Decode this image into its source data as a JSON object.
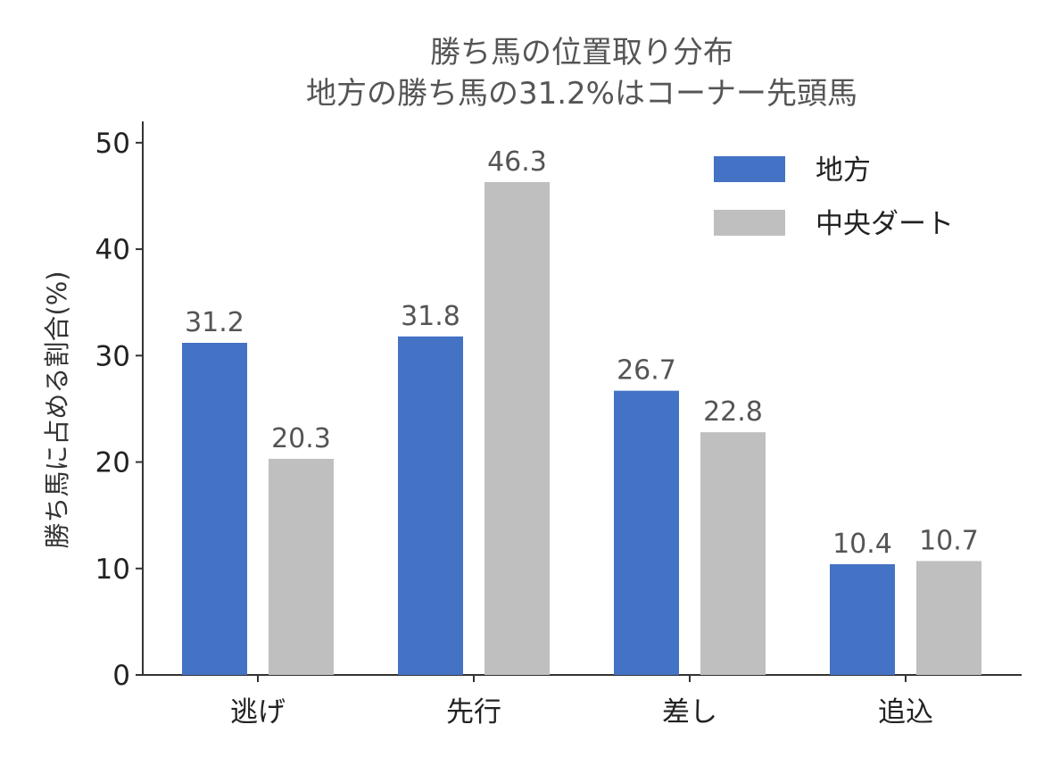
{
  "chart_data": {
    "type": "bar",
    "title": "勝ち馬の位置取り分布",
    "subtitle": "地方の勝ち馬の31.2%はコーナー先頭馬",
    "xlabel": "",
    "ylabel": "勝ち馬に占める割合(%)",
    "categories": [
      "逃げ",
      "先行",
      "差し",
      "追込"
    ],
    "series": [
      {
        "name": "地方",
        "color": "#4472C4",
        "values": [
          31.2,
          31.8,
          26.7,
          10.4
        ]
      },
      {
        "name": "中央ダート",
        "color": "#BFBFBF",
        "values": [
          20.3,
          46.3,
          22.8,
          10.7
        ]
      }
    ],
    "ylim": [
      0,
      52
    ],
    "yticks": [
      0,
      10,
      20,
      30,
      40,
      50
    ],
    "grid": false,
    "legend_position": "top-right"
  }
}
